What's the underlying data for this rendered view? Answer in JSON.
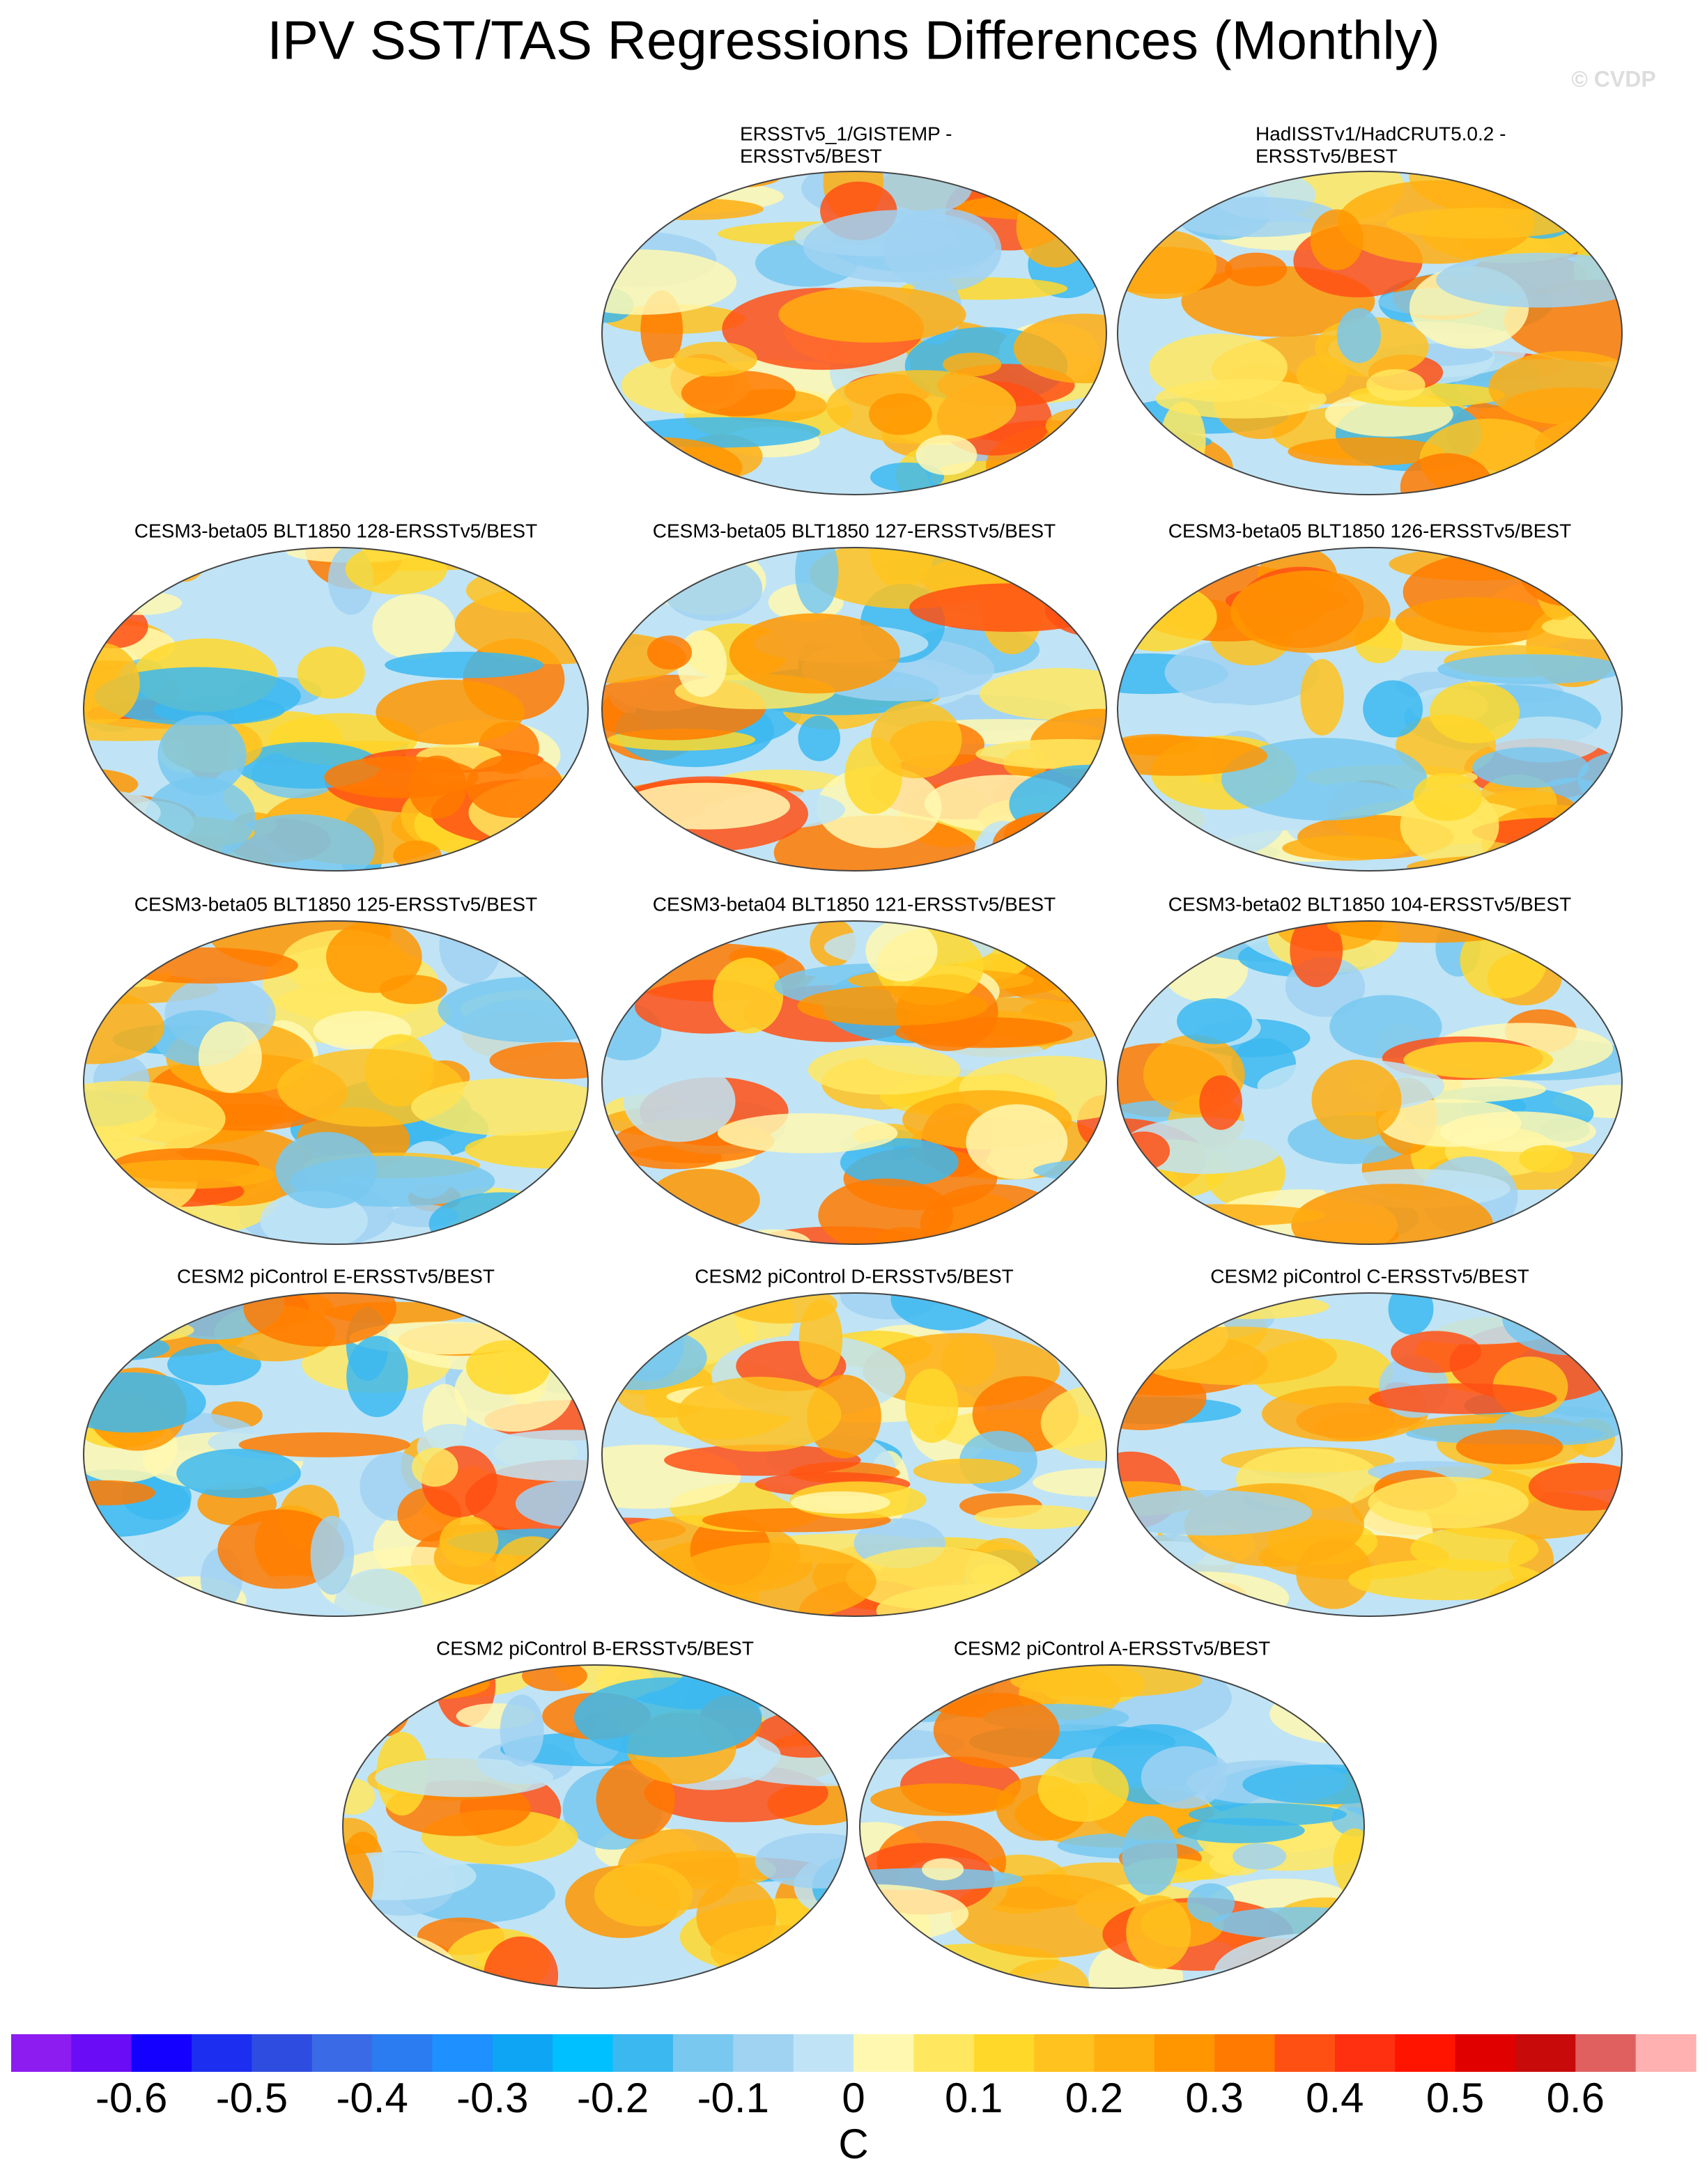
{
  "title": "IPV SST/TAS Regressions Differences (Monthly)",
  "watermark": "© CVDP",
  "panels": [
    {
      "title": [
        "ERSSTv5_1/GISTEMP -",
        "ERSSTv5/BEST"
      ]
    },
    {
      "title": [
        "HadISSTv1/HadCRUT5.0.2 -",
        "ERSSTv5/BEST"
      ]
    },
    {
      "title": [
        "CESM3-beta05 BLT1850 128-ERSSTv5/BEST"
      ]
    },
    {
      "title": [
        "CESM3-beta05 BLT1850 127-ERSSTv5/BEST"
      ]
    },
    {
      "title": [
        "CESM3-beta05 BLT1850 126-ERSSTv5/BEST"
      ]
    },
    {
      "title": [
        "CESM3-beta05 BLT1850 125-ERSSTv5/BEST"
      ]
    },
    {
      "title": [
        "CESM3-beta04 BLT1850 121-ERSSTv5/BEST"
      ]
    },
    {
      "title": [
        "CESM3-beta02 BLT1850 104-ERSSTv5/BEST"
      ]
    },
    {
      "title": [
        "CESM2 piControl E-ERSSTv5/BEST"
      ]
    },
    {
      "title": [
        "CESM2 piControl D-ERSSTv5/BEST"
      ]
    },
    {
      "title": [
        "CESM2 piControl C-ERSSTv5/BEST"
      ]
    },
    {
      "title": [
        "CESM2 piControl B-ERSSTv5/BEST"
      ]
    },
    {
      "title": [
        "CESM2 piControl A-ERSSTv5/BEST"
      ]
    }
  ],
  "colorbar": {
    "label": "C",
    "lim": [
      -0.7,
      0.7
    ],
    "ticks": [
      -0.6,
      -0.5,
      -0.4,
      -0.3,
      -0.2,
      -0.1,
      0,
      0.1,
      0.2,
      0.3,
      0.4,
      0.5,
      0.6
    ],
    "colors": [
      "#8c1cf0",
      "#6a0cf5",
      "#1400ff",
      "#1c2ef0",
      "#2e4de0",
      "#3a6ae6",
      "#2a7cf0",
      "#1e90ff",
      "#0ea5f5",
      "#00c0ff",
      "#3cb8f0",
      "#78c8f0",
      "#a0d2f2",
      "#c0e4f5",
      "#fff8b0",
      "#ffe860",
      "#ffd82a",
      "#ffc21e",
      "#ffae10",
      "#ff9600",
      "#ff7a00",
      "#ff5014",
      "#ff3010",
      "#ff1400",
      "#e00000",
      "#c80a0a",
      "#e06060",
      "#ffb0b0"
    ]
  }
}
